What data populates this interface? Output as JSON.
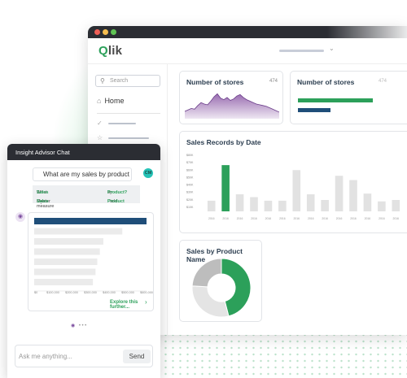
{
  "app": {
    "logo_text": "Qlik",
    "logo_q": "Q",
    "logo_rest": "lik"
  },
  "sidebar": {
    "search_placeholder": "Search",
    "home_label": "Home",
    "icons": [
      "search-icon",
      "home-icon",
      "check-circle-icon",
      "star-icon"
    ]
  },
  "cards": {
    "stores_area": {
      "title": "Number of stores",
      "count": "474"
    },
    "stores_bars": {
      "title": "Number of stores",
      "count": "474"
    },
    "sales_by_date": {
      "title": "Sales Records by Date"
    },
    "sales_by_product": {
      "title": "Sales by Product Name"
    }
  },
  "chat": {
    "header": "Insight Advisor Chat",
    "user_question": "What are my sales by product",
    "avatar_initials": "CM",
    "suggestions": [
      {
        "left_prefix": "What are my ",
        "left_term": "Sales",
        "right_prefix": "by ",
        "right_term": "Product?"
      },
      {
        "left_prefix": "Master measure ",
        "left_term": "Sales",
        "right_prefix": "Field ",
        "right_term": "Product"
      }
    ],
    "explore_label": "Explore this further...",
    "input_placeholder": "Ask me anything...",
    "send_label": "Send"
  },
  "colors": {
    "accent_green": "#2ca05a",
    "navy": "#1f4e79",
    "purple": "#8e5ca8",
    "grey_bar": "#e2e2e2"
  },
  "chart_data": [
    {
      "id": "stores_area",
      "type": "area",
      "x": [
        0,
        1,
        2,
        3,
        4,
        5,
        6,
        7,
        8,
        9,
        10,
        11,
        12,
        13,
        14,
        15,
        16,
        17,
        18,
        19,
        20,
        21,
        22,
        23,
        24,
        25,
        26,
        27,
        28,
        29
      ],
      "values": [
        10,
        12,
        14,
        13,
        18,
        22,
        20,
        19,
        24,
        30,
        34,
        28,
        26,
        29,
        25,
        27,
        31,
        33,
        29,
        26,
        24,
        22,
        20,
        19,
        18,
        17,
        15,
        13,
        11,
        9
      ],
      "ylim": [
        0,
        40
      ]
    },
    {
      "id": "stores_bars",
      "type": "bar",
      "orientation": "horizontal",
      "values": [
        92,
        40
      ],
      "colors": [
        "#2ca05a",
        "#1f4e79"
      ],
      "xlim": [
        0,
        100
      ]
    },
    {
      "id": "sales_by_date",
      "type": "bar",
      "y_ticks": [
        "$80K",
        "$70K",
        "$60K",
        "$50K",
        "$40K",
        "$30K",
        "$20K",
        "$10K"
      ],
      "categories": [
        "2016",
        "2016",
        "2016",
        "2016",
        "2016",
        "2016",
        "2016",
        "2016",
        "2016",
        "2016",
        "2016",
        "2016",
        "2016",
        "2016"
      ],
      "values": [
        15,
        65,
        24,
        20,
        15,
        15,
        58,
        24,
        16,
        50,
        44,
        25,
        14,
        16
      ],
      "highlight_index": 1,
      "ylim": [
        0,
        80
      ]
    },
    {
      "id": "sales_by_product",
      "type": "pie",
      "donut": true,
      "slices": [
        {
          "value": 46,
          "color": "#2ca05a"
        },
        {
          "value": 30,
          "color": "#e4e4e4"
        },
        {
          "value": 24,
          "color": "#bdbdbd"
        }
      ]
    },
    {
      "id": "chat_answer",
      "type": "bar",
      "orientation": "horizontal",
      "x_ticks": [
        "$0",
        "$100,000",
        "$200,000",
        "$300,000",
        "$400,000",
        "$500,000",
        "$600,000"
      ],
      "values": [
        650000,
        510000,
        400000,
        380000,
        365000,
        355000,
        340000
      ],
      "highlight_index": 0,
      "xlim": [
        0,
        650000
      ]
    }
  ]
}
